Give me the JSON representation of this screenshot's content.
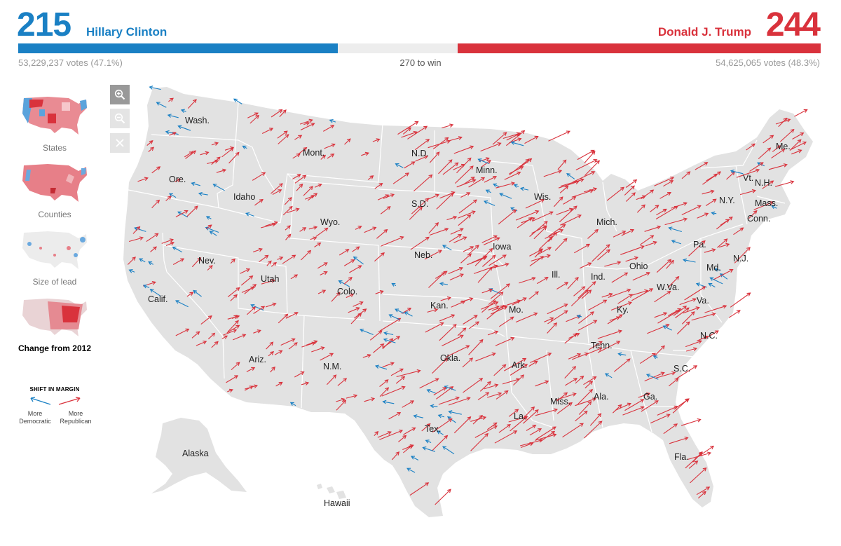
{
  "colors": {
    "democrat": "#1a80c4",
    "republican": "#d9323c",
    "land": "#e2e2e2",
    "borders": "#ffffff"
  },
  "header": {
    "dem": {
      "electoral_votes": "215",
      "name": "Hillary Clinton",
      "votes_text": "53,229,237 votes (47.1%)",
      "bar_fraction": 0.398
    },
    "rep": {
      "electoral_votes": "244",
      "name": "Donald J. Trump",
      "votes_text": "54,625,065 votes (48.3%)",
      "bar_fraction": 0.452
    },
    "to_win": "270 to win"
  },
  "sidebar": {
    "views": [
      {
        "label": "States",
        "active": false
      },
      {
        "label": "Counties",
        "active": false
      },
      {
        "label": "Size of lead",
        "active": false
      },
      {
        "label": "Change from 2012",
        "active": true
      }
    ],
    "legend": {
      "title": "SHIFT IN MARGIN",
      "dem_label": "More Democratic",
      "rep_label": "More Republican"
    }
  },
  "controls": {
    "zoom_in_icon": "zoom-in-icon",
    "zoom_out_icon": "zoom-out-icon",
    "reset_icon": "close-icon"
  },
  "map": {
    "state_labels": [
      "Wash.",
      "Mont.",
      "N.D.",
      "Minn.",
      "Me.",
      "Ore.",
      "Idaho",
      "Wis.",
      "Vt.",
      "N.H.",
      "S.D.",
      "N.Y.",
      "Mass.",
      "Conn.",
      "Wyo.",
      "Mich.",
      "Pa.",
      "Iowa",
      "Nev.",
      "Neb.",
      "Ohio",
      "Md.",
      "N.J.",
      "Utah",
      "Ill.",
      "Ind.",
      "W.Va.",
      "Colo.",
      "Calif.",
      "Kan.",
      "Mo.",
      "Ky.",
      "Va.",
      "N.C.",
      "Tenn.",
      "Ariz.",
      "N.M.",
      "Okla.",
      "Ark.",
      "S.C.",
      "Miss.",
      "Ala.",
      "Ga.",
      "Tex.",
      "La.",
      "Fla.",
      "Alaska",
      "Hawaii"
    ]
  }
}
